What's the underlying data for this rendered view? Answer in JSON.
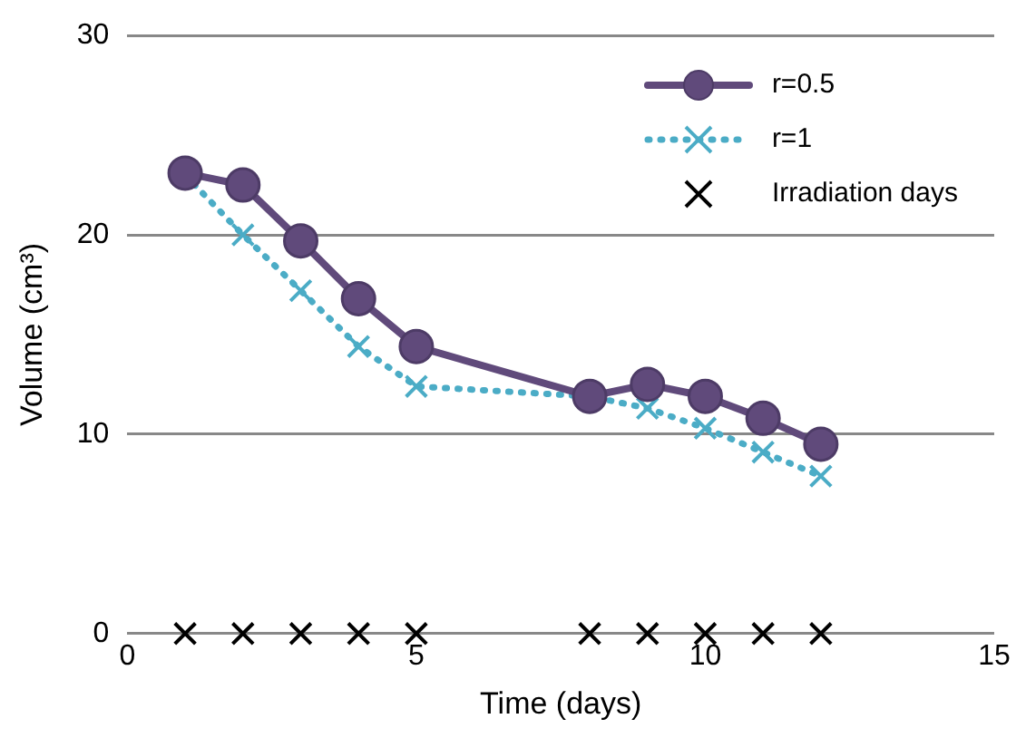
{
  "chart_data": {
    "type": "line",
    "xlabel": "Time (days)",
    "ylabel": "Volume (cm³)",
    "xlim": [
      0,
      15
    ],
    "xticks": [
      0,
      5,
      10,
      15
    ],
    "ylim": [
      0,
      30
    ],
    "yticks": [
      0,
      10,
      20,
      30
    ],
    "grid": "y",
    "legend": "top right",
    "series": [
      {
        "name": "r=0.5",
        "color": "#604a7b",
        "marker": "circle",
        "line_style": "solid",
        "x": [
          1,
          2,
          3,
          4,
          5,
          8,
          9,
          10,
          11,
          12
        ],
        "values": [
          23.1,
          22.5,
          19.7,
          16.8,
          14.4,
          11.9,
          12.5,
          11.9,
          10.8,
          9.5
        ]
      },
      {
        "name": "r=1",
        "color": "#4bacc6",
        "marker": "cross",
        "line_style": "dotted",
        "x": [
          1,
          2,
          3,
          4,
          5,
          8,
          9,
          10,
          11,
          12
        ],
        "values": [
          23.0,
          20.0,
          17.2,
          14.4,
          12.4,
          11.9,
          11.3,
          10.3,
          9.1,
          7.9
        ]
      },
      {
        "name": "Irradiation days",
        "type": "scatter",
        "color": "#000000",
        "marker": "cross",
        "x": [
          1,
          2,
          3,
          4,
          5,
          8,
          9,
          10,
          11,
          12
        ],
        "values": [
          0,
          0,
          0,
          0,
          0,
          0,
          0,
          0,
          0,
          0
        ]
      }
    ]
  }
}
